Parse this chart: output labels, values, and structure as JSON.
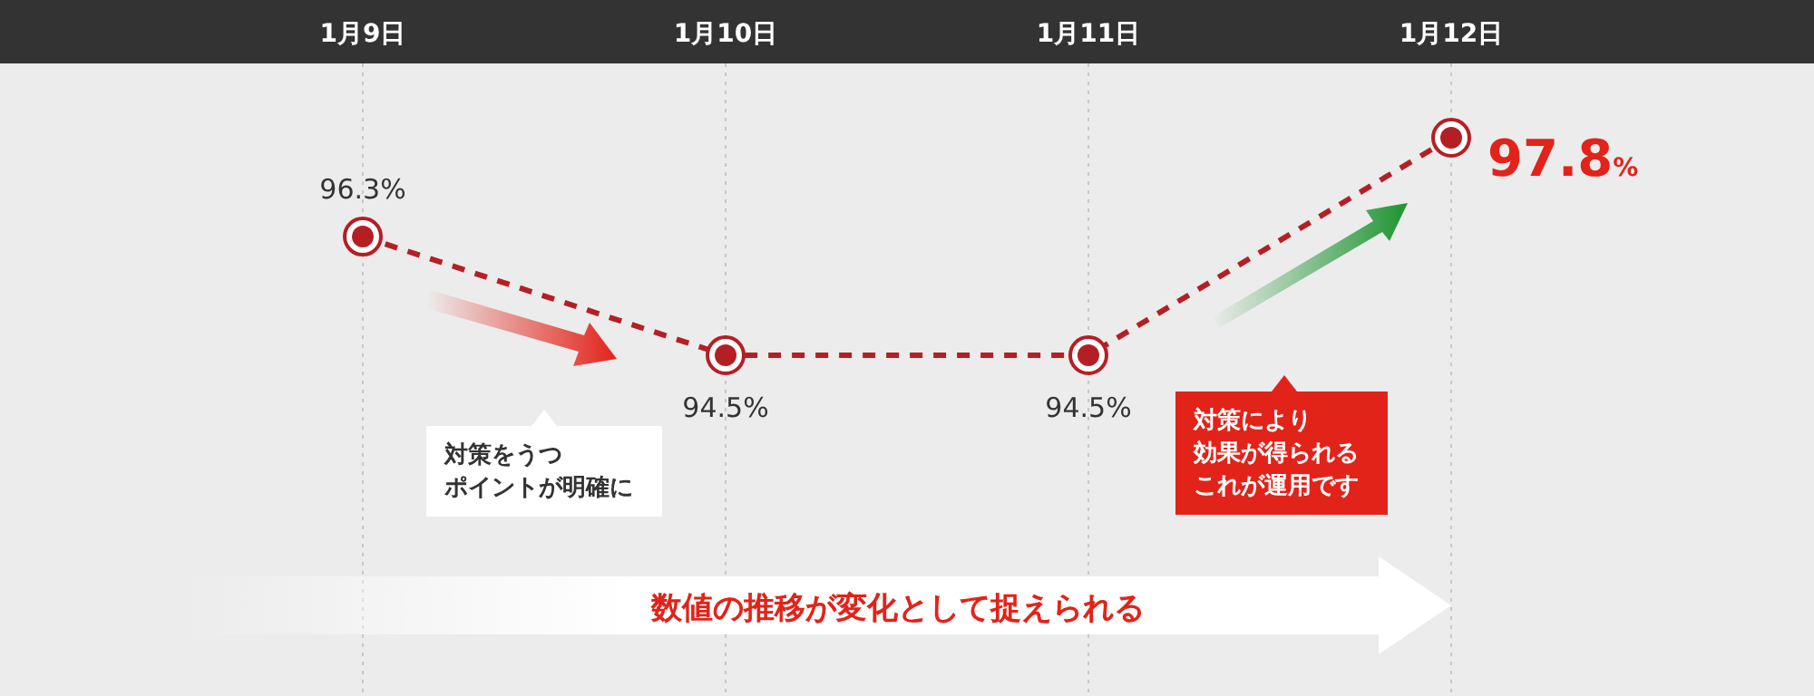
{
  "chart_data": {
    "type": "line",
    "categories": [
      "1月9日",
      "1月10日",
      "1月11日",
      "1月12日"
    ],
    "values": [
      96.3,
      94.5,
      94.5,
      97.8
    ],
    "value_labels": [
      "96.3%",
      "94.5%",
      "94.5%",
      "97.8%"
    ],
    "color": "#b51f24",
    "line_style": "dashed",
    "marker": "circle",
    "grid": "x",
    "annotations": [
      "対策をうつ",
      "ポイントが明確に",
      "対策により",
      "効果が得られる",
      "これが運用です",
      "数値の推移が変化として捉えられる"
    ]
  }
}
